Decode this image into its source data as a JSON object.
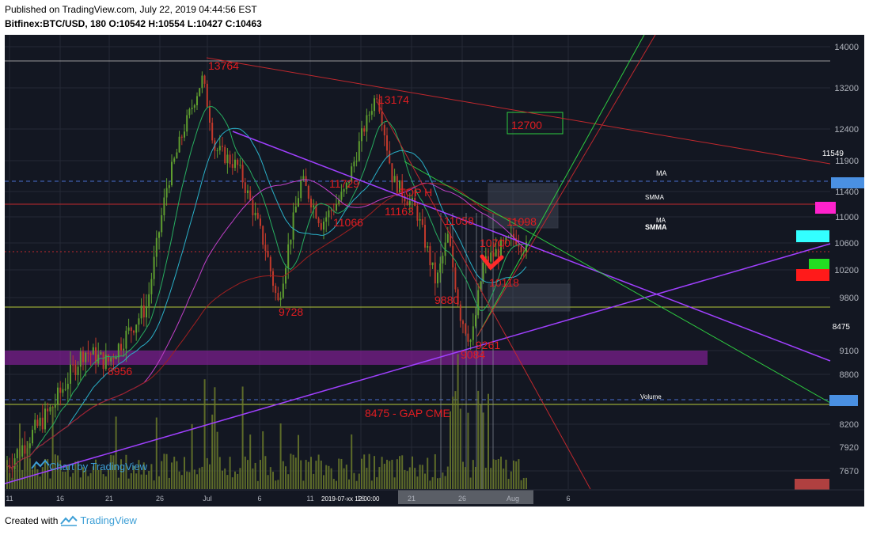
{
  "header": {
    "published_line": "Published on TradingView.com, July 22, 2019 04:44:56 EST",
    "symbol_line": "Bitfinex:BTC/USD, 180 O:10542 H:10554 L:10427 C:10463"
  },
  "footer": {
    "created_with": "Created with",
    "brand": "TradingView"
  },
  "colors": {
    "background": "#131722",
    "grid": "#242a36",
    "axis_text": "#b0b4bd",
    "up": "#5f9e2f",
    "down": "#c0392b",
    "annotation": "#e11d21",
    "purple_line": "#a040ff",
    "green_line": "#2ecc40",
    "red_line": "#c0282d",
    "zone_purple": "#7a1f8c",
    "volume": "#6b7a2a"
  },
  "chart_data": {
    "type": "candlestick",
    "symbol": "Bitfinex:BTC/USD",
    "timeframe": "180",
    "ohlc_last": {
      "open": 10542,
      "high": 10554,
      "low": 10427,
      "close": 10463
    },
    "y_axis_ticks": [
      14000,
      13200,
      12400,
      11900,
      11400,
      11000,
      10600,
      10200,
      9800,
      9100,
      8800,
      8200,
      7920,
      7670
    ],
    "x_axis_ticks": [
      "11",
      "16",
      "21",
      "26",
      "Jul",
      "6",
      "11",
      "16",
      "21",
      "26",
      "Aug",
      "6"
    ],
    "x_axis_overlap_label": "2019-07-xx 12:00:00",
    "watermark": "Chart by TradingView",
    "annotations": [
      "13764",
      "13174",
      "12700",
      "11729",
      "TOP H",
      "11066",
      "11163",
      "11058",
      "11098",
      "10118",
      "9728",
      "9880",
      "9261",
      "9084",
      "8956",
      "8475 - GAP CME",
      "10700"
    ],
    "price_badges": [
      {
        "label": "11549",
        "color": "#4a90e2"
      },
      {
        "label": "MA",
        "color": "#000000"
      },
      {
        "label": "SMMA",
        "color": "#000000"
      },
      {
        "label": "MA",
        "color": "#000000"
      },
      {
        "label": "SMMA",
        "color": "#000000"
      },
      {
        "label": "8475",
        "color": "#000000"
      },
      {
        "label": "Volume",
        "color": "#000000"
      }
    ],
    "horizontal_levels": [
      13764,
      11549,
      11150,
      10500,
      9600,
      8475
    ],
    "series": [
      {
        "name": "MA"
      },
      {
        "name": "SMMA"
      },
      {
        "name": "Volume"
      }
    ]
  }
}
